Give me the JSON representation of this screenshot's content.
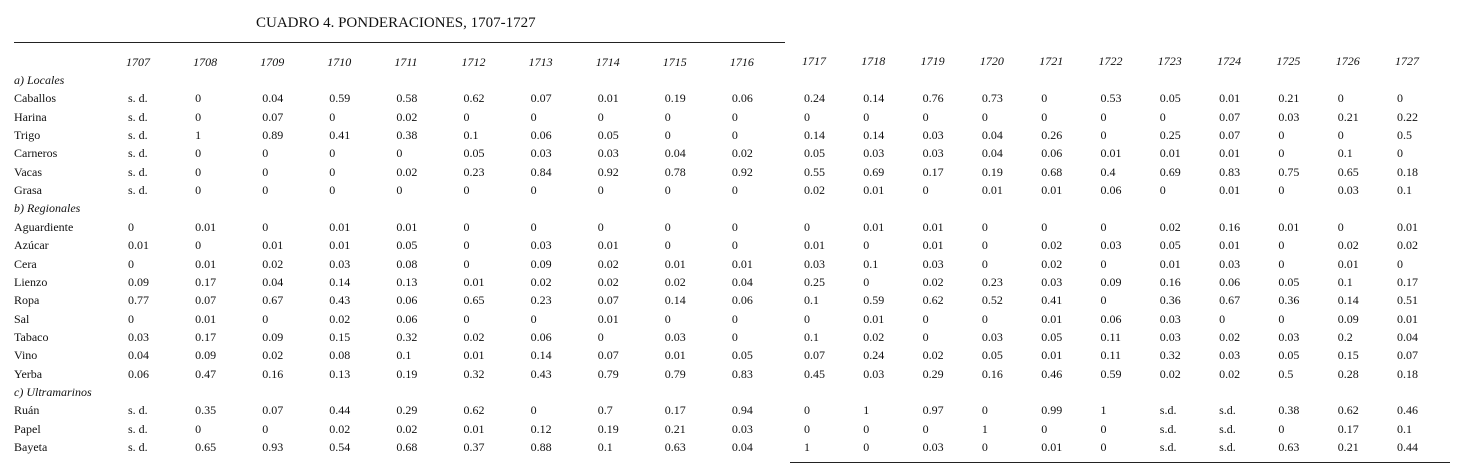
{
  "title": "CUADRO 4. PONDERACIONES, 1707-1727",
  "years": [
    "1707",
    "1708",
    "1709",
    "1710",
    "1711",
    "1712",
    "1713",
    "1714",
    "1715",
    "1716",
    "1717",
    "1718",
    "1719",
    "1720",
    "1721",
    "1722",
    "1723",
    "1724",
    "1725",
    "1726",
    "1727"
  ],
  "sections": [
    {
      "label": "a) Locales",
      "rows": [
        {
          "label": "Caballos",
          "values": [
            "s. d.",
            "0",
            "0.04",
            "0.59",
            "0.58",
            "0.62",
            "0.07",
            "0.01",
            "0.19",
            "0.06",
            "0.24",
            "0.14",
            "0.76",
            "0.73",
            "0",
            "0.53",
            "0.05",
            "0.01",
            "0.21",
            "0",
            "0"
          ]
        },
        {
          "label": "Harina",
          "values": [
            "s. d.",
            "0",
            "0.07",
            "0",
            "0.02",
            "0",
            "0",
            "0",
            "0",
            "0",
            "0",
            "0",
            "0",
            "0",
            "0",
            "0",
            "0",
            "0.07",
            "0.03",
            "0.21",
            "0.22"
          ]
        },
        {
          "label": "Trigo",
          "values": [
            "s. d.",
            "1",
            "0.89",
            "0.41",
            "0.38",
            "0.1",
            "0.06",
            "0.05",
            "0",
            "0",
            "0.14",
            "0.14",
            "0.03",
            "0.04",
            "0.26",
            "0",
            "0.25",
            "0.07",
            "0",
            "0",
            "0.5"
          ]
        },
        {
          "label": "Carneros",
          "values": [
            "s. d.",
            "0",
            "0",
            "0",
            "0",
            "0.05",
            "0.03",
            "0.03",
            "0.04",
            "0.02",
            "0.05",
            "0.03",
            "0.03",
            "0.04",
            "0.06",
            "0.01",
            "0.01",
            "0.01",
            "0",
            "0.1",
            "0"
          ]
        },
        {
          "label": "Vacas",
          "values": [
            "s. d.",
            "0",
            "0",
            "0",
            "0.02",
            "0.23",
            "0.84",
            "0.92",
            "0.78",
            "0.92",
            "0.55",
            "0.69",
            "0.17",
            "0.19",
            "0.68",
            "0.4",
            "0.69",
            "0.83",
            "0.75",
            "0.65",
            "0.18"
          ]
        },
        {
          "label": "Grasa",
          "values": [
            "s. d.",
            "0",
            "0",
            "0",
            "0",
            "0",
            "0",
            "0",
            "0",
            "0",
            "0.02",
            "0.01",
            "0",
            "0.01",
            "0.01",
            "0.06",
            "0",
            "0.01",
            "0",
            "0.03",
            "0.1"
          ]
        }
      ]
    },
    {
      "label": "b) Regionales",
      "rows": [
        {
          "label": "Aguardiente",
          "values": [
            "0",
            "0.01",
            "0",
            "0.01",
            "0.01",
            "0",
            "0",
            "0",
            "0",
            "0",
            "0",
            "0.01",
            "0.01",
            "0",
            "0",
            "0",
            "0.02",
            "0.16",
            "0.01",
            "0",
            "0.01"
          ]
        },
        {
          "label": "Azúcar",
          "values": [
            "0.01",
            "0",
            "0.01",
            "0.01",
            "0.05",
            "0",
            "0.03",
            "0.01",
            "0",
            "0",
            "0.01",
            "0",
            "0.01",
            "0",
            "0.02",
            "0.03",
            "0.05",
            "0.01",
            "0",
            "0.02",
            "0.02"
          ]
        },
        {
          "label": "Cera",
          "values": [
            "0",
            "0.01",
            "0.02",
            "0.03",
            "0.08",
            "0",
            "0.09",
            "0.02",
            "0.01",
            "0.01",
            "0.03",
            "0.1",
            "0.03",
            "0",
            "0.02",
            "0",
            "0.01",
            "0.03",
            "0",
            "0.01",
            "0"
          ]
        },
        {
          "label": "Lienzo",
          "values": [
            "0.09",
            "0.17",
            "0.04",
            "0.14",
            "0.13",
            "0.01",
            "0.02",
            "0.02",
            "0.02",
            "0.04",
            "0.25",
            "0",
            "0.02",
            "0.23",
            "0.03",
            "0.09",
            "0.16",
            "0.06",
            "0.05",
            "0.1",
            "0.17"
          ]
        },
        {
          "label": "Ropa",
          "values": [
            "0.77",
            "0.07",
            "0.67",
            "0.43",
            "0.06",
            "0.65",
            "0.23",
            "0.07",
            "0.14",
            "0.06",
            "0.1",
            "0.59",
            "0.62",
            "0.52",
            "0.41",
            "0",
            "0.36",
            "0.67",
            "0.36",
            "0.14",
            "0.51"
          ]
        },
        {
          "label": "Sal",
          "values": [
            "0",
            "0.01",
            "0",
            "0.02",
            "0.06",
            "0",
            "0",
            "0.01",
            "0",
            "0",
            "0",
            "0.01",
            "0",
            "0",
            "0.01",
            "0.06",
            "0.03",
            "0",
            "0",
            "0.09",
            "0.01"
          ]
        },
        {
          "label": "Tabaco",
          "values": [
            "0.03",
            "0.17",
            "0.09",
            "0.15",
            "0.32",
            "0.02",
            "0.06",
            "0",
            "0.03",
            "0",
            "0.1",
            "0.02",
            "0",
            "0.03",
            "0.05",
            "0.11",
            "0.03",
            "0.02",
            "0.03",
            "0.2",
            "0.04"
          ]
        },
        {
          "label": "Vino",
          "values": [
            "0.04",
            "0.09",
            "0.02",
            "0.08",
            "0.1",
            "0.01",
            "0.14",
            "0.07",
            "0.01",
            "0.05",
            "0.07",
            "0.24",
            "0.02",
            "0.05",
            "0.01",
            "0.11",
            "0.32",
            "0.03",
            "0.05",
            "0.15",
            "0.07"
          ]
        },
        {
          "label": "Yerba",
          "values": [
            "0.06",
            "0.47",
            "0.16",
            "0.13",
            "0.19",
            "0.32",
            "0.43",
            "0.79",
            "0.79",
            "0.83",
            "0.45",
            "0.03",
            "0.29",
            "0.16",
            "0.46",
            "0.59",
            "0.02",
            "0.02",
            "0.5",
            "0.28",
            "0.18"
          ]
        }
      ]
    },
    {
      "label": "c) Ultramarinos",
      "rows": [
        {
          "label": "Ruán",
          "values": [
            "s. d.",
            "0.35",
            "0.07",
            "0.44",
            "0.29",
            "0.62",
            "0",
            "0.7",
            "0.17",
            "0.94",
            "0",
            "1",
            "0.97",
            "0",
            "0.99",
            "1",
            "s.d.",
            "s.d.",
            "0.38",
            "0.62",
            "0.46"
          ]
        },
        {
          "label": "Papel",
          "values": [
            "s. d.",
            "0",
            "0",
            "0.02",
            "0.02",
            "0.01",
            "0.12",
            "0.19",
            "0.21",
            "0.03",
            "0",
            "0",
            "0",
            "1",
            "0",
            "0",
            "s.d.",
            "s.d.",
            "0",
            "0.17",
            "0.1"
          ]
        },
        {
          "label": "Bayeta",
          "values": [
            "s. d.",
            "0.65",
            "0.93",
            "0.54",
            "0.68",
            "0.37",
            "0.88",
            "0.1",
            "0.63",
            "0.04",
            "1",
            "0",
            "0.03",
            "0",
            "0.01",
            "0",
            "s.d.",
            "s.d.",
            "0.63",
            "0.21",
            "0.44"
          ]
        }
      ]
    }
  ]
}
